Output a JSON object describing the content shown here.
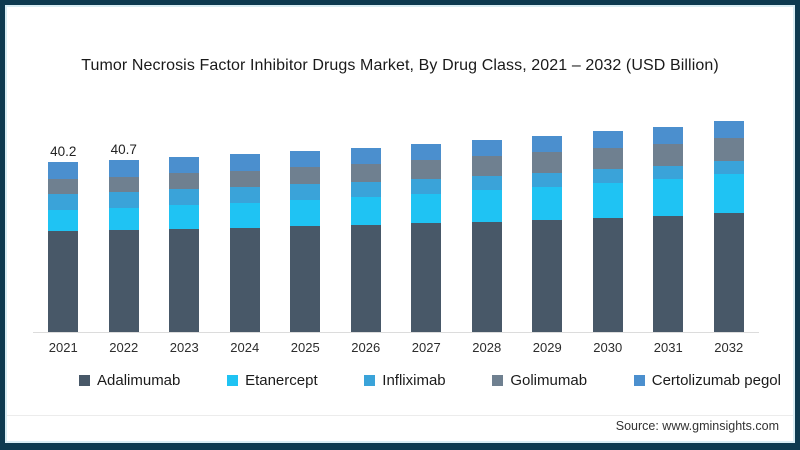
{
  "frame": {
    "border_color": "#0e3a50",
    "inner_line_color": "#d9edf4",
    "background": "#ffffff"
  },
  "title": "Tumor Necrosis Factor Inhibitor Drugs Market, By Drug Class, 2021 – 2032 (USD Billion)",
  "chart_data": {
    "type": "bar",
    "stacked": true,
    "title": "Tumor Necrosis Factor Inhibitor Drugs Market, By Drug Class, 2021 – 2032 (USD Billion)",
    "xlabel": "",
    "ylabel": "",
    "grid": false,
    "legend_position": "bottom",
    "axis_line_color": "#dcdcdc",
    "categories": [
      "2021",
      "2022",
      "2023",
      "2024",
      "2025",
      "2026",
      "2027",
      "2028",
      "2029",
      "2030",
      "2031",
      "2032"
    ],
    "series": [
      {
        "name": "Adalimumab",
        "color": "#485868",
        "values": [
          23.9,
          24.1,
          24.4,
          24.7,
          25.0,
          25.4,
          25.7,
          26.1,
          26.5,
          27.0,
          27.5,
          28.2
        ]
      },
      {
        "name": "Etanercept",
        "color": "#1fc3f3",
        "values": [
          5.0,
          5.3,
          5.6,
          5.9,
          6.3,
          6.6,
          7.0,
          7.4,
          7.8,
          8.2,
          8.6,
          9.1
        ]
      },
      {
        "name": "Infliximab",
        "color": "#3aa3d9",
        "values": [
          3.8,
          3.7,
          3.7,
          3.6,
          3.6,
          3.5,
          3.5,
          3.4,
          3.4,
          3.3,
          3.2,
          3.1
        ]
      },
      {
        "name": "Golimumab",
        "color": "#6f8090",
        "values": [
          3.5,
          3.6,
          3.8,
          3.9,
          4.1,
          4.3,
          4.4,
          4.6,
          4.8,
          5.0,
          5.2,
          5.4
        ]
      },
      {
        "name": "Certolizumab pegol",
        "color": "#4b8fce",
        "values": [
          4.0,
          4.0,
          3.9,
          3.9,
          3.8,
          3.8,
          3.8,
          3.8,
          3.8,
          3.9,
          4.1,
          4.2
        ]
      }
    ],
    "totals_estimated": [
      40.2,
      40.7,
      41.4,
      42.0,
      42.8,
      43.6,
      44.4,
      45.3,
      46.3,
      47.4,
      48.6,
      50.0
    ],
    "bar_labels": [
      "40.2",
      "40.7",
      "",
      "",
      "",
      "",
      "",
      "",
      "",
      "",
      "",
      ""
    ]
  },
  "source": {
    "label": "Source: www.gminsights.com"
  }
}
